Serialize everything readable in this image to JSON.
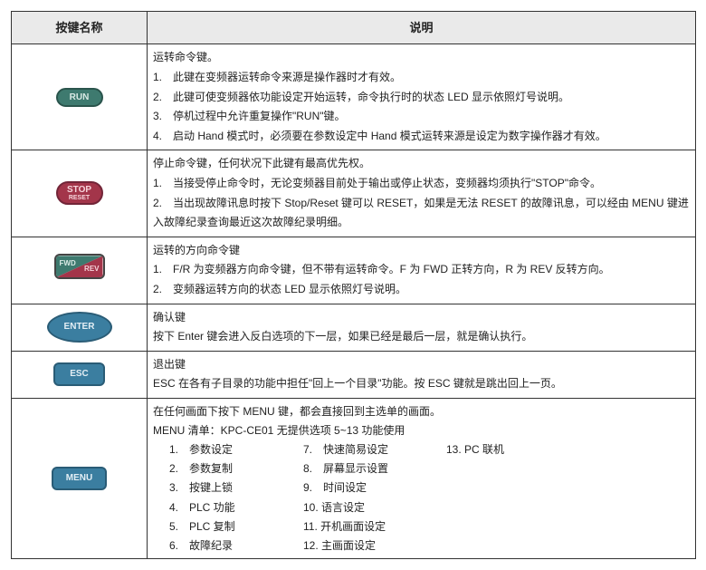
{
  "header": {
    "col1": "按键名称",
    "col2": "说明"
  },
  "rows": [
    {
      "key": {
        "type": "run",
        "label": "RUN"
      },
      "lines": [
        "运转命令键。",
        "1.　此键在变频器运转命令来源是操作器时才有效。",
        "2.　此键可使变频器依功能设定开始运转，命令执行时的状态 LED 显示依照灯号说明。",
        "3.　停机过程中允许重复操作\"RUN\"键。",
        "4.　启动 Hand 模式时，必须要在参数设定中 Hand 模式运转来源是设定为数字操作器才有效。"
      ]
    },
    {
      "key": {
        "type": "stop",
        "top": "STOP",
        "bot": "RESET"
      },
      "lines": [
        "停止命令键，任何状况下此键有最高优先权。",
        "1.　当接受停止命令时，无论变频器目前处于输出或停止状态，变频器均须执行\"STOP\"命令。",
        "2.　当出现故障讯息时按下 Stop/Reset 键可以 RESET，如果是无法 RESET 的故障讯息，可以经由 MENU 键进入故障纪录查询最近这次故障纪录明细。"
      ]
    },
    {
      "key": {
        "type": "fwdrev",
        "fwd": "FWD",
        "rev": "REV"
      },
      "lines": [
        "运转的方向命令键",
        "1.　F/R 为变频器方向命令键，但不带有运转命令。F 为 FWD 正转方向，R 为 REV 反转方向。",
        "2.　变频器运转方向的状态 LED 显示依照灯号说明。"
      ]
    },
    {
      "key": {
        "type": "enter",
        "label": "ENTER"
      },
      "lines": [
        "确认键",
        "按下 Enter 键会进入反白选项的下一层，如果已经是最后一层，就是确认执行。"
      ]
    },
    {
      "key": {
        "type": "esc",
        "label": "ESC"
      },
      "lines": [
        "退出键",
        "ESC 在各有子目录的功能中担任\"回上一个目录\"功能。按 ESC 键就是跳出回上一页。"
      ]
    },
    {
      "key": {
        "type": "menu",
        "label": "MENU"
      },
      "lines": [
        "在任何画面下按下 MENU 键，都会直接回到主选单的画面。",
        "MENU 清单：KPC-CE01 无提供选项 5~13 功能使用"
      ],
      "menu_items": [
        "1.　参数设定",
        "7.　快速简易设定",
        "13. PC 联机",
        "2.　参数复制",
        "8.　屏幕显示设置",
        "",
        "3.　按键上锁",
        "9.　时间设定",
        "",
        "4.　PLC 功能",
        "10. 语言设定",
        "",
        "5.　PLC 复制",
        "11. 开机画面设定",
        "",
        "6.　故障纪录",
        "12. 主画面设定",
        ""
      ]
    }
  ],
  "colors": {
    "header_bg": "#eaeaea",
    "border": "#333333",
    "run_bg": "#3e7a6f",
    "stop_bg": "#a3354a",
    "blue_bg": "#3b7ea0"
  }
}
